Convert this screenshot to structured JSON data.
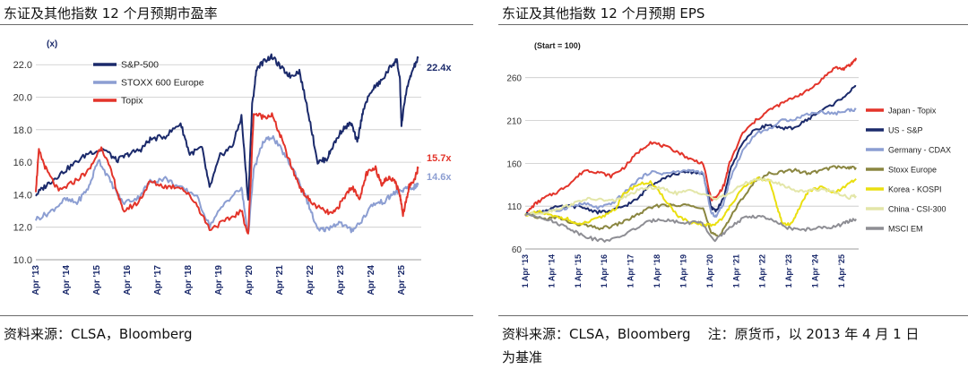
{
  "left": {
    "title": "东证及其他指数 12 个月预期市盈率",
    "source": "资料来源：CLSA，Bloomberg"
  },
  "right": {
    "title": "东证及其他指数 12 个月预期 EPS",
    "source_line1": "资料来源：CLSA，Bloomberg    注：原货币，以 2013 年 4 月 1 日",
    "source_line2": "为基准"
  },
  "chart_data": [
    {
      "type": "line",
      "ylabel": "(x)",
      "ylim": [
        10.0,
        23.5
      ],
      "yticks": [
        "10.0",
        "12.0",
        "14.0",
        "16.0",
        "18.0",
        "20.0",
        "22.0"
      ],
      "xlim": [
        2013.25,
        2025.9
      ],
      "xticks": [
        "Apr '13",
        "Apr '14",
        "Apr '15",
        "Apr '16",
        "Apr '17",
        "Apr '18",
        "Apr '19",
        "Apr '20",
        "Apr '21",
        "Apr '22",
        "Apr '23",
        "Apr '24",
        "Apr '25"
      ],
      "legend_position": "top-left",
      "grid": "horizontal",
      "end_labels": [
        "22.4x",
        "15.7x",
        "14.6x"
      ],
      "series": [
        {
          "name": "S&P-500",
          "color": "#1b2a6b",
          "x": [
            2013.25,
            2013.6,
            2014.0,
            2014.5,
            2015.0,
            2015.5,
            2015.9,
            2016.3,
            2016.7,
            2017.0,
            2017.5,
            2018.0,
            2018.3,
            2018.7,
            2018.95,
            2019.3,
            2019.7,
            2020.0,
            2020.22,
            2020.35,
            2020.5,
            2020.8,
            2021.0,
            2021.3,
            2021.6,
            2021.9,
            2022.2,
            2022.5,
            2022.8,
            2023.0,
            2023.3,
            2023.6,
            2023.8,
            2024.0,
            2024.3,
            2024.6,
            2024.9,
            2025.1,
            2025.2,
            2025.25,
            2025.4,
            2025.6,
            2025.8
          ],
          "y": [
            14.0,
            14.6,
            15.2,
            15.9,
            16.6,
            16.8,
            16.1,
            16.5,
            16.8,
            17.4,
            17.6,
            18.4,
            16.5,
            16.9,
            14.4,
            16.4,
            17.0,
            18.8,
            13.6,
            19.5,
            21.8,
            22.3,
            22.5,
            21.8,
            21.3,
            21.6,
            19.0,
            16.0,
            16.2,
            17.0,
            18.0,
            18.4,
            17.2,
            19.3,
            20.5,
            21.0,
            21.9,
            22.3,
            21.0,
            18.3,
            20.3,
            21.6,
            22.4
          ]
        },
        {
          "name": "STOXX 600 Europe",
          "color": "#8c9ed2",
          "x": [
            2013.25,
            2013.7,
            2014.2,
            2014.6,
            2015.0,
            2015.3,
            2015.7,
            2016.1,
            2016.6,
            2017.0,
            2017.5,
            2018.0,
            2018.5,
            2018.95,
            2019.5,
            2020.0,
            2020.22,
            2020.4,
            2020.7,
            2021.0,
            2021.4,
            2021.8,
            2022.2,
            2022.5,
            2022.8,
            2023.2,
            2023.6,
            2023.9,
            2024.3,
            2024.7,
            2025.0,
            2025.3,
            2025.6,
            2025.8
          ],
          "y": [
            12.5,
            12.9,
            13.7,
            13.5,
            14.5,
            16.2,
            14.8,
            13.5,
            13.8,
            14.8,
            15.0,
            14.4,
            14.0,
            12.1,
            13.6,
            14.4,
            11.5,
            15.5,
            17.2,
            17.6,
            16.5,
            15.2,
            13.4,
            11.8,
            11.9,
            12.3,
            11.8,
            12.3,
            13.4,
            13.6,
            14.1,
            14.3,
            14.4,
            14.6
          ]
        },
        {
          "name": "Topix",
          "color": "#e3342a",
          "x": [
            2013.25,
            2013.35,
            2013.6,
            2014.0,
            2014.5,
            2015.0,
            2015.4,
            2015.8,
            2016.1,
            2016.6,
            2017.0,
            2017.5,
            2018.0,
            2018.5,
            2018.95,
            2019.5,
            2020.0,
            2020.22,
            2020.4,
            2020.7,
            2021.0,
            2021.3,
            2021.7,
            2022.0,
            2022.3,
            2022.7,
            2023.0,
            2023.3,
            2023.6,
            2023.9,
            2024.1,
            2024.4,
            2024.6,
            2024.8,
            2025.0,
            2025.2,
            2025.3,
            2025.5,
            2025.7,
            2025.8
          ],
          "y": [
            14.3,
            16.7,
            15.5,
            14.2,
            14.8,
            15.5,
            17.0,
            15.0,
            13.0,
            13.5,
            14.8,
            14.5,
            14.5,
            13.5,
            11.9,
            12.4,
            13.0,
            11.5,
            19.0,
            18.8,
            18.9,
            17.5,
            15.4,
            14.2,
            13.5,
            13.0,
            12.8,
            13.6,
            14.5,
            13.8,
            15.3,
            15.6,
            14.7,
            15.0,
            15.0,
            14.0,
            12.8,
            14.5,
            15.0,
            15.7
          ]
        }
      ]
    },
    {
      "type": "line",
      "ylabel": "(Start = 100)",
      "ylim": [
        60,
        290
      ],
      "yticks": [
        "60",
        "110",
        "160",
        "210",
        "260"
      ],
      "xlim": [
        2013.25,
        2025.9
      ],
      "xticks": [
        "1 Apr '13",
        "1 Apr '14",
        "1 Apr '15",
        "1 Apr '16",
        "1 Apr '17",
        "1 Apr '18",
        "1 Apr '19",
        "1 Apr '20",
        "1 Apr '21",
        "1 Apr '22",
        "1 Apr '23",
        "1 Apr '24",
        "1 Apr '25"
      ],
      "legend_position": "right",
      "grid": "horizontal",
      "series": [
        {
          "name": "Japan - Topix",
          "color": "#e3342a",
          "x": [
            2013.25,
            2013.6,
            2014.0,
            2014.5,
            2015.0,
            2015.5,
            2016.0,
            2016.5,
            2017.0,
            2017.5,
            2018.0,
            2018.5,
            2019.0,
            2019.5,
            2020.0,
            2020.3,
            2020.5,
            2020.8,
            2021.0,
            2021.5,
            2022.0,
            2022.5,
            2023.0,
            2023.5,
            2024.0,
            2024.5,
            2025.0,
            2025.3,
            2025.6,
            2025.8
          ],
          "y": [
            100,
            112,
            120,
            127,
            138,
            152,
            150,
            145,
            155,
            172,
            185,
            180,
            174,
            165,
            160,
            118,
            120,
            135,
            160,
            195,
            210,
            222,
            230,
            238,
            245,
            258,
            272,
            270,
            275,
            283
          ]
        },
        {
          "name": "US - S&P",
          "color": "#1b2a6b",
          "x": [
            2013.25,
            2013.8,
            2014.3,
            2015.0,
            2015.5,
            2016.0,
            2016.5,
            2017.0,
            2017.5,
            2018.0,
            2018.5,
            2019.0,
            2019.5,
            2020.0,
            2020.3,
            2020.5,
            2020.8,
            2021.0,
            2021.5,
            2022.0,
            2022.5,
            2023.0,
            2023.5,
            2024.0,
            2024.5,
            2025.0,
            2025.5,
            2025.8
          ],
          "y": [
            100,
            103,
            108,
            110,
            108,
            103,
            104,
            110,
            118,
            135,
            143,
            148,
            150,
            148,
            108,
            105,
            120,
            150,
            185,
            200,
            205,
            200,
            202,
            212,
            222,
            230,
            242,
            250
          ]
        },
        {
          "name": "Germany - CDAX",
          "color": "#8c9ed2",
          "x": [
            2013.25,
            2013.8,
            2014.5,
            2015.0,
            2015.5,
            2016.0,
            2016.5,
            2017.0,
            2017.5,
            2018.0,
            2018.5,
            2019.0,
            2019.5,
            2020.0,
            2020.3,
            2020.5,
            2020.8,
            2021.0,
            2021.5,
            2022.0,
            2022.5,
            2023.0,
            2023.5,
            2024.0,
            2024.5,
            2025.0,
            2025.5,
            2025.8
          ],
          "y": [
            100,
            102,
            105,
            110,
            113,
            108,
            112,
            125,
            140,
            150,
            148,
            150,
            152,
            148,
            102,
            98,
            115,
            140,
            175,
            195,
            200,
            210,
            212,
            218,
            220,
            218,
            222,
            223
          ]
        },
        {
          "name": "Stoxx Europe",
          "color": "#8a8640",
          "x": [
            2013.25,
            2014.0,
            2014.5,
            2015.0,
            2015.5,
            2016.0,
            2016.5,
            2017.0,
            2017.5,
            2018.0,
            2018.5,
            2019.0,
            2019.5,
            2020.0,
            2020.3,
            2020.6,
            2021.0,
            2021.5,
            2022.0,
            2022.5,
            2023.0,
            2023.5,
            2024.0,
            2024.5,
            2025.0,
            2025.5,
            2025.8
          ],
          "y": [
            100,
            95,
            97,
            90,
            88,
            84,
            86,
            92,
            100,
            108,
            112,
            110,
            112,
            108,
            78,
            75,
            95,
            120,
            140,
            148,
            150,
            152,
            148,
            152,
            156,
            155,
            155
          ]
        },
        {
          "name": "Korea - KOSPI",
          "color": "#eadf10",
          "x": [
            2013.25,
            2013.8,
            2014.3,
            2014.8,
            2015.2,
            2015.7,
            2016.2,
            2016.7,
            2017.0,
            2017.5,
            2018.0,
            2018.5,
            2019.0,
            2019.5,
            2020.0,
            2020.4,
            2020.8,
            2021.0,
            2021.5,
            2022.0,
            2022.5,
            2022.8,
            2023.0,
            2023.3,
            2023.6,
            2024.0,
            2024.5,
            2025.0,
            2025.5,
            2025.8
          ],
          "y": [
            100,
            103,
            98,
            96,
            88,
            92,
            98,
            108,
            125,
            135,
            138,
            120,
            100,
            90,
            88,
            88,
            98,
            110,
            130,
            142,
            140,
            110,
            90,
            88,
            105,
            128,
            132,
            125,
            135,
            142
          ]
        },
        {
          "name": "China - CSI-300",
          "color": "#e3e6a8",
          "x": [
            2013.25,
            2014.0,
            2014.5,
            2015.0,
            2015.5,
            2016.0,
            2016.5,
            2017.0,
            2017.5,
            2018.0,
            2018.5,
            2019.0,
            2019.5,
            2020.0,
            2020.5,
            2021.0,
            2021.5,
            2022.0,
            2022.5,
            2023.0,
            2023.5,
            2024.0,
            2024.5,
            2025.0,
            2025.5,
            2025.8
          ],
          "y": [
            100,
            103,
            107,
            112,
            118,
            118,
            116,
            120,
            128,
            132,
            130,
            125,
            128,
            125,
            118,
            125,
            135,
            142,
            140,
            135,
            128,
            128,
            130,
            127,
            120,
            122
          ]
        },
        {
          "name": "MSCI EM",
          "color": "#8e8e94",
          "x": [
            2013.25,
            2013.8,
            2014.3,
            2014.8,
            2015.3,
            2015.8,
            2016.2,
            2016.7,
            2017.2,
            2017.8,
            2018.3,
            2018.8,
            2019.3,
            2019.8,
            2020.0,
            2020.4,
            2020.8,
            2021.2,
            2021.7,
            2022.2,
            2022.7,
            2023.2,
            2023.7,
            2024.2,
            2024.7,
            2025.2,
            2025.5,
            2025.8
          ],
          "y": [
            100,
            98,
            92,
            86,
            78,
            72,
            70,
            72,
            80,
            90,
            95,
            93,
            90,
            92,
            88,
            70,
            78,
            90,
            98,
            98,
            92,
            85,
            82,
            84,
            85,
            88,
            92,
            95
          ]
        }
      ]
    }
  ]
}
